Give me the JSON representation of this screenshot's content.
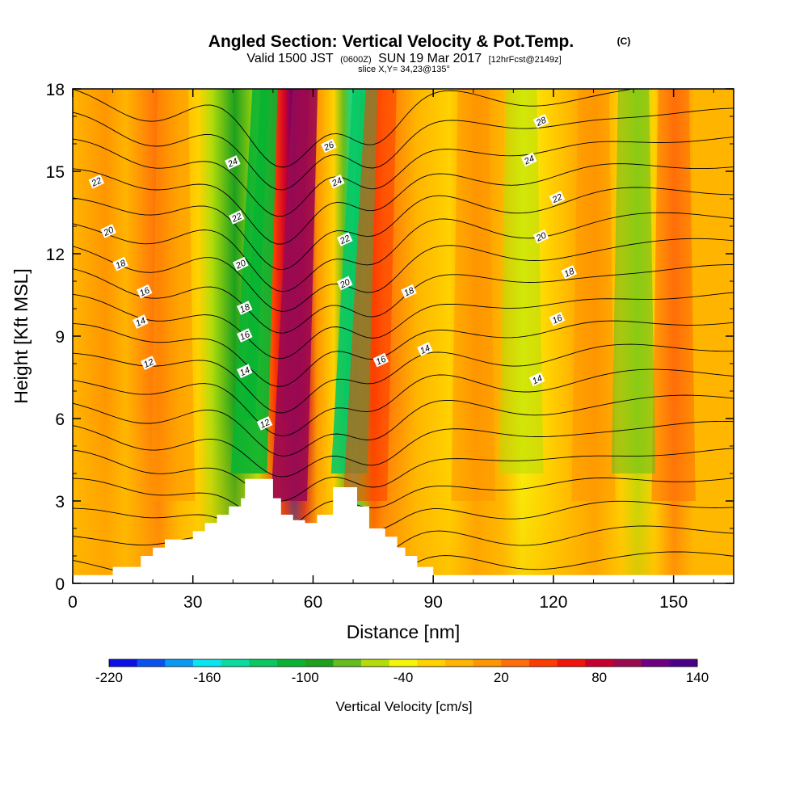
{
  "title": {
    "main": "Angled Section: Vertical Velocity & Pot.Temp.",
    "main_suffix": "(C)",
    "valid_prefix": "Valid 1500 JST",
    "valid_utc": "(0600Z)",
    "valid_date": "SUN 19 Mar 2017",
    "forecast": "[12hrFcst@2149z]",
    "slice": "slice X,Y= 34,23@135°"
  },
  "chart_data": {
    "type": "heatmap",
    "xlabel": "Distance [nm]",
    "ylabel": "Height [Kft MSL]",
    "xlim": [
      0,
      165
    ],
    "ylim": [
      0,
      18
    ],
    "x_ticks": [
      "0",
      "30",
      "60",
      "90",
      "120",
      "150"
    ],
    "y_ticks": [
      "0",
      "3",
      "6",
      "9",
      "12",
      "15",
      "18"
    ],
    "colorbar": {
      "label": "Vertical Velocity [cm/s]",
      "ticks": [
        "-220",
        "-160",
        "-100",
        "-40",
        "20",
        "80",
        "140"
      ],
      "range": [
        -220,
        140
      ],
      "step": 20,
      "colors": [
        "#0a10e6",
        "#0a52f0",
        "#0a9af5",
        "#0ae6f0",
        "#0adca0",
        "#0ac864",
        "#0ab432",
        "#1ea01e",
        "#64be1e",
        "#b4dc0a",
        "#f5f50a",
        "#ffd200",
        "#ffb400",
        "#ff9600",
        "#ff6e0a",
        "#ff3c00",
        "#f0140a",
        "#c8002d",
        "#9b0a50",
        "#6e0082",
        "#4b008c"
      ]
    },
    "velocity_features": [
      {
        "kind": "updraft",
        "x": 54,
        "value": 140
      },
      {
        "kind": "downdraft",
        "x": 44,
        "value": -100
      },
      {
        "kind": "downdraft",
        "x": 69,
        "value": -120
      },
      {
        "kind": "updraft",
        "x": 73,
        "value": 80
      },
      {
        "kind": "updraft",
        "x": 25,
        "value": 40
      },
      {
        "kind": "updraft",
        "x": 100,
        "value": 40
      },
      {
        "kind": "updraft",
        "x": 130,
        "value": 40
      },
      {
        "kind": "updraft",
        "x": 150,
        "value": 60
      },
      {
        "kind": "downdraft",
        "x": 112,
        "value": -40
      },
      {
        "kind": "downdraft",
        "x": 140,
        "value": -60
      }
    ],
    "contour_labels": [
      {
        "text": "22",
        "x": 6,
        "y": 14.6
      },
      {
        "text": "20",
        "x": 9,
        "y": 12.8
      },
      {
        "text": "18",
        "x": 12,
        "y": 11.6
      },
      {
        "text": "16",
        "x": 18,
        "y": 10.6
      },
      {
        "text": "14",
        "x": 17,
        "y": 9.5
      },
      {
        "text": "12",
        "x": 19,
        "y": 8.0
      },
      {
        "text": "24",
        "x": 40,
        "y": 15.3
      },
      {
        "text": "22",
        "x": 41,
        "y": 13.3
      },
      {
        "text": "20",
        "x": 42,
        "y": 11.6
      },
      {
        "text": "18",
        "x": 43,
        "y": 10.0
      },
      {
        "text": "16",
        "x": 43,
        "y": 9.0
      },
      {
        "text": "14",
        "x": 43,
        "y": 7.7
      },
      {
        "text": "12",
        "x": 48,
        "y": 5.8
      },
      {
        "text": "26",
        "x": 64,
        "y": 15.9
      },
      {
        "text": "24",
        "x": 66,
        "y": 14.6
      },
      {
        "text": "22",
        "x": 68,
        "y": 12.5
      },
      {
        "text": "20",
        "x": 68,
        "y": 10.9
      },
      {
        "text": "18",
        "x": 84,
        "y": 10.6
      },
      {
        "text": "16",
        "x": 77,
        "y": 8.1
      },
      {
        "text": "14",
        "x": 88,
        "y": 8.5
      },
      {
        "text": "28",
        "x": 117,
        "y": 16.8
      },
      {
        "text": "24",
        "x": 114,
        "y": 15.4
      },
      {
        "text": "22",
        "x": 121,
        "y": 14.0
      },
      {
        "text": "20",
        "x": 117,
        "y": 12.6
      },
      {
        "text": "18",
        "x": 124,
        "y": 11.3
      },
      {
        "text": "16",
        "x": 121,
        "y": 9.6
      },
      {
        "text": "14",
        "x": 116,
        "y": 7.4
      }
    ],
    "terrain": [
      [
        0,
        0.3
      ],
      [
        10,
        0.3
      ],
      [
        10,
        0.6
      ],
      [
        17,
        0.6
      ],
      [
        17,
        1.0
      ],
      [
        20,
        1.0
      ],
      [
        20,
        1.3
      ],
      [
        23,
        1.3
      ],
      [
        23,
        1.6
      ],
      [
        30,
        1.6
      ],
      [
        30,
        1.9
      ],
      [
        33,
        1.9
      ],
      [
        33,
        2.2
      ],
      [
        36,
        2.2
      ],
      [
        36,
        2.5
      ],
      [
        39,
        2.5
      ],
      [
        39,
        2.8
      ],
      [
        42,
        2.8
      ],
      [
        42,
        3.1
      ],
      [
        43,
        3.1
      ],
      [
        43,
        3.8
      ],
      [
        50,
        3.8
      ],
      [
        50,
        3.1
      ],
      [
        52,
        3.1
      ],
      [
        52,
        2.5
      ],
      [
        55,
        2.5
      ],
      [
        55,
        2.3
      ],
      [
        58,
        2.3
      ],
      [
        58,
        2.2
      ],
      [
        61,
        2.2
      ],
      [
        61,
        2.5
      ],
      [
        65,
        2.5
      ],
      [
        65,
        3.5
      ],
      [
        71,
        3.5
      ],
      [
        71,
        2.8
      ],
      [
        74,
        2.8
      ],
      [
        74,
        2.0
      ],
      [
        78,
        2.0
      ],
      [
        78,
        1.7
      ],
      [
        81,
        1.7
      ],
      [
        81,
        1.3
      ],
      [
        83,
        1.3
      ],
      [
        83,
        1.0
      ],
      [
        86,
        1.0
      ],
      [
        86,
        0.6
      ],
      [
        90,
        0.6
      ],
      [
        90,
        0.3
      ],
      [
        165,
        0.3
      ]
    ]
  }
}
